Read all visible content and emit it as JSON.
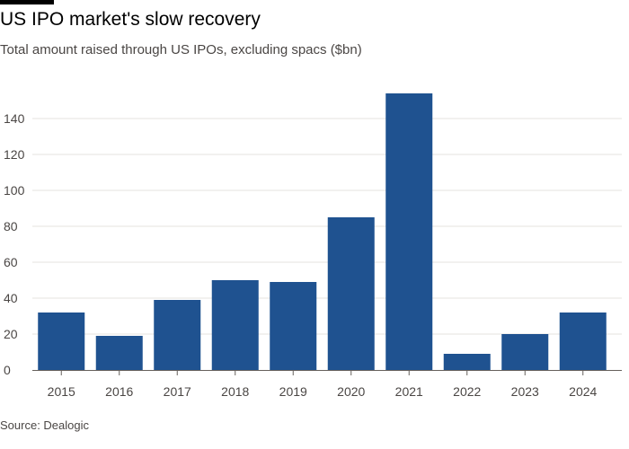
{
  "chart_data": {
    "type": "bar",
    "title": "US IPO market's slow recovery",
    "subtitle": "Total amount raised through US IPOs, excluding spacs ($bn)",
    "source": "Source: Dealogic",
    "categories": [
      "2015",
      "2016",
      "2017",
      "2018",
      "2019",
      "2020",
      "2021",
      "2022",
      "2023",
      "2024"
    ],
    "values": [
      32,
      19,
      39,
      50,
      49,
      85,
      154,
      9,
      20,
      32
    ],
    "yticks": [
      0,
      20,
      40,
      60,
      80,
      100,
      120,
      140
    ],
    "ylim": [
      0,
      154
    ],
    "xlabel": "",
    "ylabel": "",
    "grid": true,
    "colors": {
      "bar": "#1f5290",
      "grid": "#e6e3df",
      "axis": "#66605c"
    }
  }
}
